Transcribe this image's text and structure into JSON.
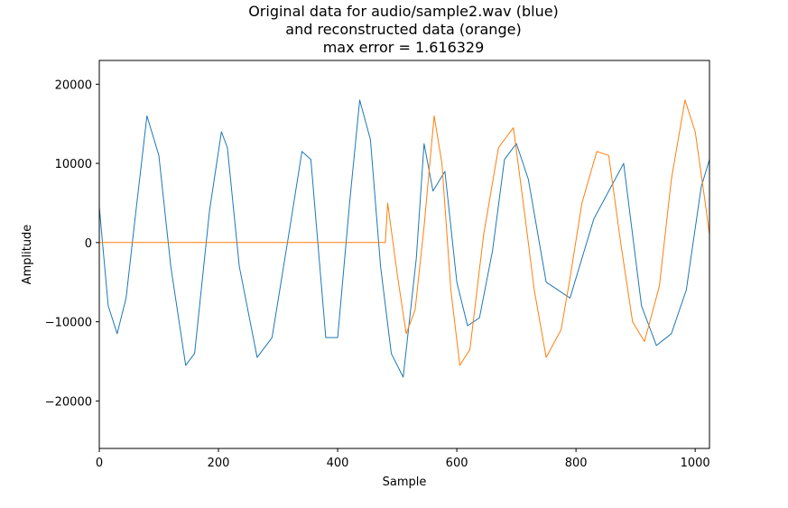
{
  "chart_data": {
    "type": "line",
    "title_lines": [
      "Original data for audio/sample2.wav (blue)",
      "and reconstructed data (orange)",
      "max error = 1.616329"
    ],
    "xlabel": "Sample",
    "ylabel": "Amplitude",
    "xlim": [
      0,
      1024
    ],
    "ylim": [
      -26000,
      23000
    ],
    "xticks": [
      0,
      200,
      400,
      600,
      800,
      1000
    ],
    "yticks": [
      -20000,
      -10000,
      0,
      10000,
      20000
    ],
    "xtick_labels": [
      "0",
      "200",
      "400",
      "600",
      "800",
      "1000"
    ],
    "ytick_labels": [
      "−20000",
      "−10000",
      "0",
      "10000",
      "20000"
    ],
    "grid": false,
    "series": [
      {
        "color": "#1f77b4",
        "x": [
          0,
          15,
          30,
          45,
          60,
          80,
          100,
          120,
          145,
          160,
          185,
          205,
          215,
          235,
          265,
          290,
          320,
          340,
          355,
          380,
          400,
          420,
          437,
          455,
          472,
          490,
          510,
          532,
          545,
          560,
          580,
          600,
          618,
          638,
          660,
          680,
          700,
          720,
          750,
          790,
          830,
          880,
          910,
          935,
          960,
          985,
          1010,
          1024
        ],
        "y": [
          4500,
          -8000,
          -11500,
          -7000,
          3000,
          16000,
          11000,
          -3000,
          -15500,
          -14000,
          4000,
          14000,
          12000,
          -3000,
          -14500,
          -12000,
          2000,
          11500,
          10500,
          -12000,
          -12000,
          5000,
          18000,
          13000,
          -3000,
          -14000,
          -17000,
          -2000,
          12500,
          6500,
          9000,
          -5000,
          -10500,
          -9500,
          -1000,
          10500,
          12500,
          8000,
          -5000,
          -7000,
          3000,
          10000,
          -8000,
          -13000,
          -11500,
          -6000,
          7000,
          10500
        ]
      },
      {
        "color": "#ff7f0e",
        "x": [
          0,
          478,
          480,
          484,
          500,
          515,
          530,
          545,
          562,
          575,
          590,
          605,
          622,
          645,
          670,
          695,
          715,
          730,
          750,
          775,
          790,
          810,
          835,
          855,
          875,
          895,
          915,
          940,
          960,
          983,
          1000,
          1015,
          1024
        ],
        "y": [
          0,
          0,
          0,
          5000,
          -4000,
          -11500,
          -8500,
          2000,
          16000,
          10000,
          -6000,
          -15500,
          -13500,
          1000,
          12000,
          14500,
          3000,
          -6000,
          -14500,
          -11000,
          -4500,
          5000,
          11500,
          11000,
          0,
          -10000,
          -12500,
          -5500,
          8000,
          18000,
          14000,
          6000,
          1000
        ]
      }
    ]
  }
}
